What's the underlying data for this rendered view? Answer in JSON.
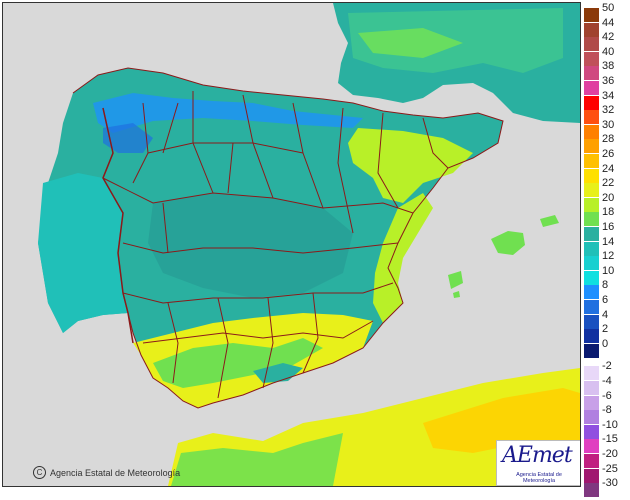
{
  "map": {
    "copyright_text": "Agencia Estatal de Meteorología",
    "copyright_symbol": "C",
    "logo_text": "AEmet",
    "logo_subtitle": "Agencia Estatal de Meteorología",
    "colors": {
      "sea": "#d9d9d9",
      "borders": "#8b1a1a",
      "mountains_cool": "#1e90ff",
      "interior": "#2ab0a0",
      "coast_warm": "#7ce84a",
      "south_hot": "#e8f01a"
    }
  },
  "legend": {
    "warm_scale": [
      {
        "label": "50",
        "color": "#8b3a0a"
      },
      {
        "label": "44",
        "color": "#a0422e"
      },
      {
        "label": "42",
        "color": "#b04a48"
      },
      {
        "label": "40",
        "color": "#c0505a"
      },
      {
        "label": "38",
        "color": "#d04880"
      },
      {
        "label": "36",
        "color": "#e040a0"
      },
      {
        "label": "34",
        "color": "#ff0000"
      },
      {
        "label": "32",
        "color": "#ff5010"
      },
      {
        "label": "30",
        "color": "#ff8000"
      },
      {
        "label": "28",
        "color": "#ffa000"
      },
      {
        "label": "26",
        "color": "#ffc000"
      },
      {
        "label": "24",
        "color": "#ffe000"
      },
      {
        "label": "22",
        "color": "#e8f01a"
      },
      {
        "label": "20",
        "color": "#b8f028"
      },
      {
        "label": "18",
        "color": "#70e050"
      },
      {
        "label": "16",
        "color": "#2ab0a0"
      },
      {
        "label": "14",
        "color": "#20c0b8"
      },
      {
        "label": "12",
        "color": "#18d0d0"
      },
      {
        "label": "10",
        "color": "#10e0e0"
      },
      {
        "label": "8",
        "color": "#1e90ff"
      },
      {
        "label": "6",
        "color": "#2070e0"
      },
      {
        "label": "4",
        "color": "#1850c0"
      },
      {
        "label": "2",
        "color": "#1030a0"
      },
      {
        "label": "0",
        "color": "#0a1a70"
      }
    ],
    "cold_scale": [
      {
        "label": "-2",
        "color": "#e8d8f8"
      },
      {
        "label": "-4",
        "color": "#d8c0f0"
      },
      {
        "label": "-6",
        "color": "#c8a0e8"
      },
      {
        "label": "-8",
        "color": "#b080e0"
      },
      {
        "label": "-10",
        "color": "#9050e0"
      },
      {
        "label": "-15",
        "color": "#e040c0"
      },
      {
        "label": "-20",
        "color": "#c02080"
      },
      {
        "label": "-25",
        "color": "#a01870"
      },
      {
        "label": "-30",
        "color": "#803880"
      }
    ]
  }
}
